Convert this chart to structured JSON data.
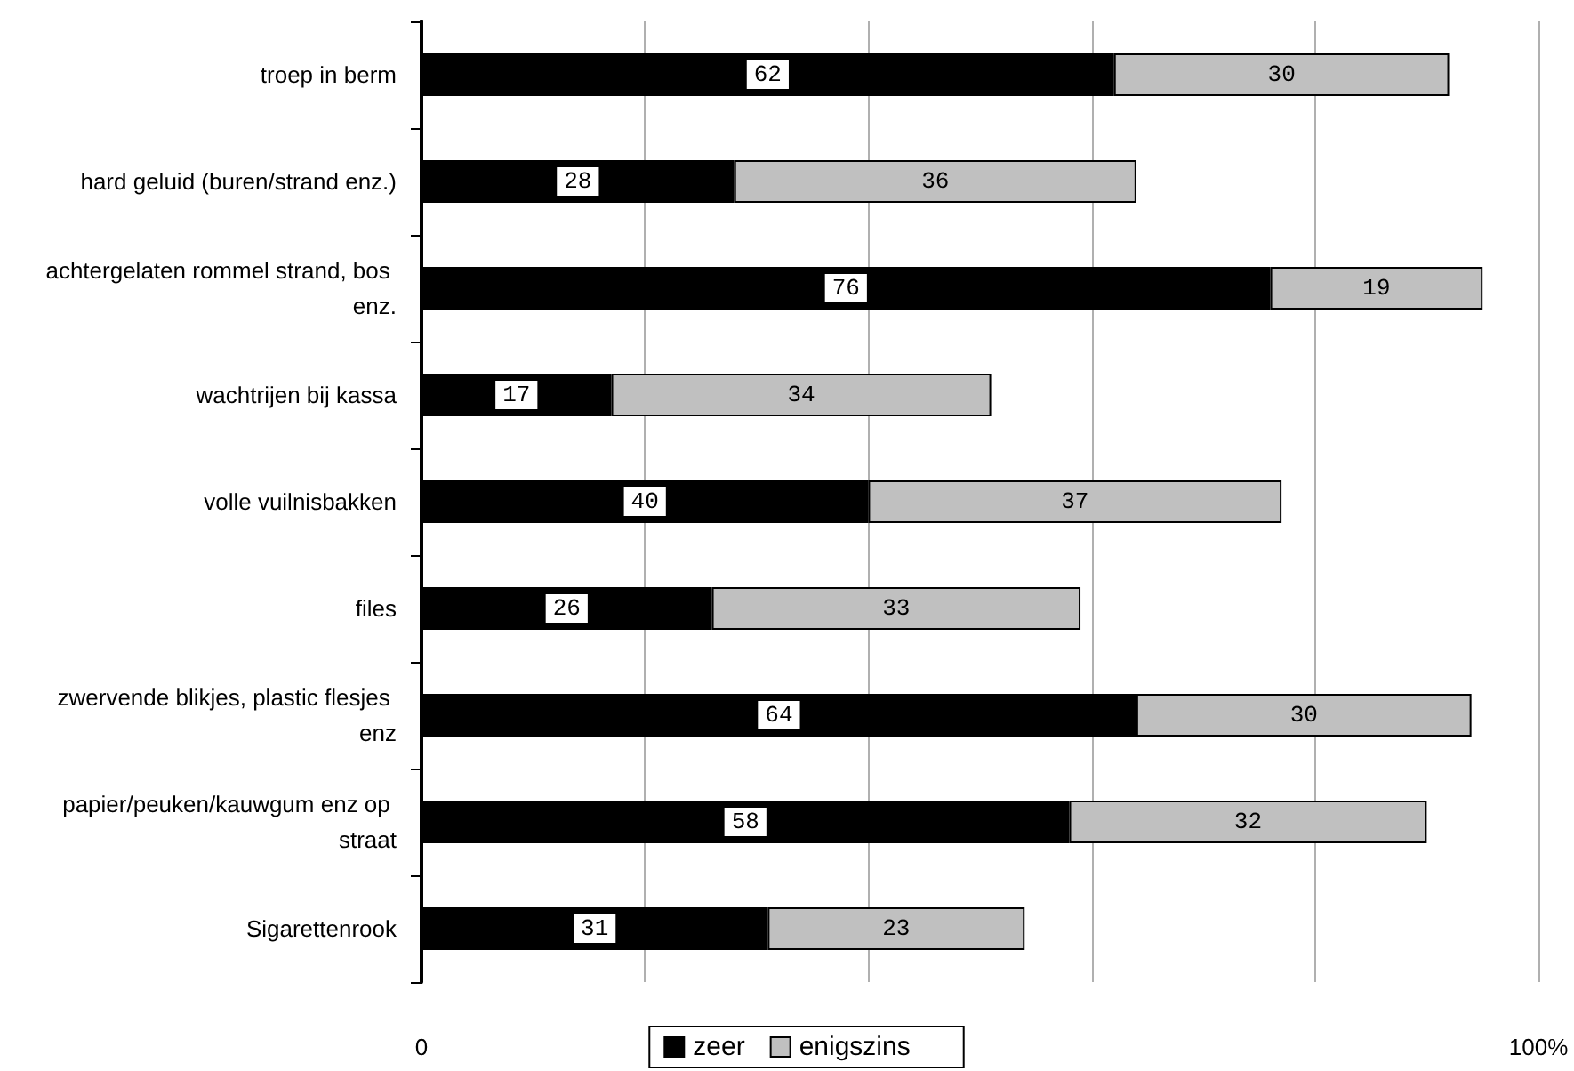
{
  "chart_data": {
    "type": "bar",
    "orientation": "horizontal",
    "stacked": true,
    "categories": [
      "troep in berm",
      "hard geluid (buren/strand enz.)",
      "achtergelaten rommel strand, bos enz.",
      "wachtrijen bij kassa",
      "volle vuilnisbakken",
      "files",
      "zwervende blikjes, plastic flesjes enz",
      "papier/peuken/kauwgum enz op straat",
      "Sigarettenrook"
    ],
    "series": [
      {
        "name": "zeer",
        "color": "#000000",
        "values": [
          62,
          28,
          76,
          17,
          40,
          26,
          64,
          58,
          31
        ]
      },
      {
        "name": "enigszins",
        "color": "#c0c0c0",
        "values": [
          30,
          36,
          19,
          34,
          37,
          33,
          30,
          32,
          23
        ]
      }
    ],
    "xlim": [
      0,
      100
    ],
    "xticks": [
      {
        "value": 0,
        "label": "0"
      },
      {
        "value": 20,
        "label": null
      },
      {
        "value": 40,
        "label": null
      },
      {
        "value": 60,
        "label": null
      },
      {
        "value": 80,
        "label": null
      },
      {
        "value": 100,
        "label": "100%"
      }
    ],
    "grid": "x",
    "legend": "bottom",
    "data_labels": true
  }
}
